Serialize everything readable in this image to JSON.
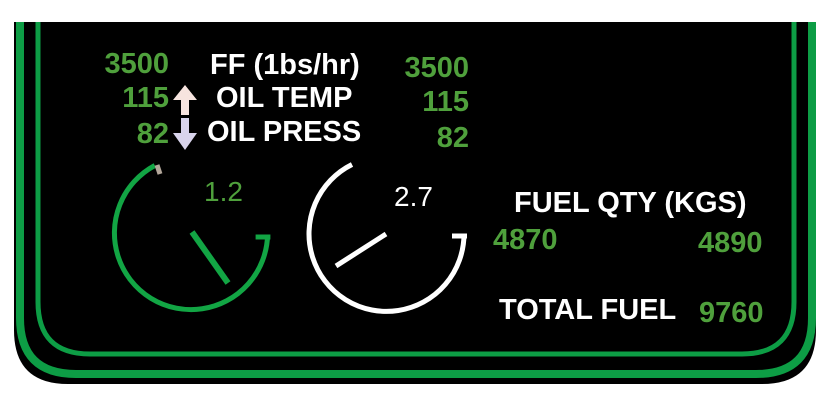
{
  "colors": {
    "panel_background": "#000000",
    "border_green": "#0d9d45",
    "value_green": "#4fa03c",
    "label_white": "#ffffff",
    "dial_green": "#12a544",
    "dial_white": "#ffffff",
    "dial_limit_marker": "#b3a79a",
    "arrow_up": "#f7e4df",
    "arrow_down": "#d9d4ec"
  },
  "engine": {
    "ff_label": "FF (1bs/hr)",
    "oil_temp_label": "OIL TEMP",
    "oil_press_label": "OIL PRESS",
    "left": {
      "ff": "3500",
      "oil_temp": "115",
      "oil_press": "82"
    },
    "right": {
      "ff": "3500",
      "oil_temp": "115",
      "oil_press": "82"
    },
    "arrow_up_icon": "arrow-up-icon",
    "arrow_down_icon": "arrow-down-icon"
  },
  "dials": {
    "left": {
      "value": "1.2",
      "color": "green"
    },
    "right": {
      "value": "2.7",
      "color": "white"
    }
  },
  "fuel": {
    "qty_label": "FUEL QTY (KGS)",
    "left_qty": "4870",
    "right_qty": "4890",
    "total_label": "TOTAL FUEL",
    "total_value": "9760"
  }
}
